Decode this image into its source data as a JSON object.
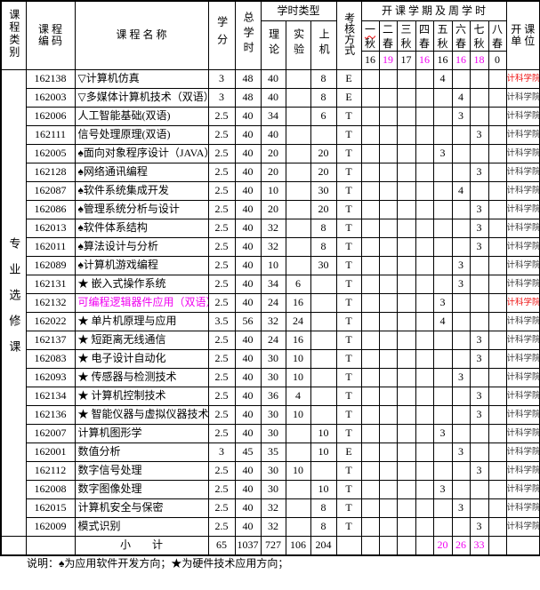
{
  "colors": {
    "magenta": "#f000f0",
    "red": "#ee1111",
    "border": "#000000",
    "unit_text": "#3d3d3d"
  },
  "header": {
    "col_category": "课程类别",
    "col_code_line1": "课 程",
    "col_code_line2": "编 码",
    "col_name": "课 程 名 称",
    "col_credit": "学分",
    "col_total": "总学时",
    "group_hour_types": "学时类型",
    "col_theory": "理论",
    "col_exp": "实验",
    "col_computer": "上机",
    "col_exam": "考核方式",
    "group_semesters": "开 课 学 期 及 周 学 时",
    "col_unit_line1": "开 课",
    "col_unit_line2": "单 位",
    "semesters": [
      {
        "term": "一",
        "season": "秋",
        "hours": "16",
        "magenta": false,
        "squiggle": true
      },
      {
        "term": "二",
        "season": "春",
        "hours": "19",
        "magenta": true,
        "squiggle": false
      },
      {
        "term": "三",
        "season": "秋",
        "hours": "17",
        "magenta": false,
        "squiggle": false
      },
      {
        "term": "四",
        "season": "春",
        "hours": "16",
        "magenta": true,
        "squiggle": false
      },
      {
        "term": "五",
        "season": "秋",
        "hours": "16",
        "magenta": false,
        "squiggle": false
      },
      {
        "term": "六",
        "season": "春",
        "hours": "16",
        "magenta": true,
        "squiggle": false
      },
      {
        "term": "七",
        "season": "秋",
        "hours": "18",
        "magenta": true,
        "squiggle": false
      },
      {
        "term": "八",
        "season": "春",
        "hours": "0",
        "magenta": false,
        "squiggle": false
      }
    ]
  },
  "category_label": "专业选修课",
  "rows": [
    {
      "code": "162138",
      "name": "▽计算机仿真",
      "credit": "3",
      "total": "48",
      "theory": "40",
      "exp": "",
      "comp": "8",
      "exam": "E",
      "sem": [
        "",
        "",
        "",
        "",
        "4",
        "",
        "",
        ""
      ],
      "unit": "计科学院",
      "unit_red": true,
      "name_magenta": false
    },
    {
      "code": "162003",
      "name": "▽多媒体计算机技术（双语）",
      "credit": "3",
      "total": "48",
      "theory": "40",
      "exp": "",
      "comp": "8",
      "exam": "E",
      "sem": [
        "",
        "",
        "",
        "",
        "",
        "4",
        "",
        ""
      ],
      "unit": "计科学院",
      "unit_red": false,
      "name_magenta": false
    },
    {
      "code": "162006",
      "name": "人工智能基础(双语)",
      "credit": "2.5",
      "total": "40",
      "theory": "34",
      "exp": "",
      "comp": "6",
      "exam": "T",
      "sem": [
        "",
        "",
        "",
        "",
        "",
        "3",
        "",
        ""
      ],
      "unit": "计科学院",
      "unit_red": false,
      "name_magenta": false
    },
    {
      "code": "162111",
      "name": "信号处理原理(双语)",
      "credit": "2.5",
      "total": "40",
      "theory": "40",
      "exp": "",
      "comp": "",
      "exam": "T",
      "sem": [
        "",
        "",
        "",
        "",
        "",
        "",
        "3",
        ""
      ],
      "unit": "计科学院",
      "unit_red": false,
      "name_magenta": false
    },
    {
      "code": "162005",
      "name": "♠面向对象程序设计（JAVA）",
      "credit": "2.5",
      "total": "40",
      "theory": "20",
      "exp": "",
      "comp": "20",
      "exam": "T",
      "sem": [
        "",
        "",
        "",
        "",
        "3",
        "",
        "",
        ""
      ],
      "unit": "计科学院",
      "unit_red": false,
      "name_magenta": false
    },
    {
      "code": "162128",
      "name": "♠网络通讯编程",
      "credit": "2.5",
      "total": "40",
      "theory": "20",
      "exp": "",
      "comp": "20",
      "exam": "T",
      "sem": [
        "",
        "",
        "",
        "",
        "",
        "",
        "3",
        ""
      ],
      "unit": "计科学院",
      "unit_red": false,
      "name_magenta": false
    },
    {
      "code": "162087",
      "name": "♠软件系统集成开发",
      "credit": "2.5",
      "total": "40",
      "theory": "10",
      "exp": "",
      "comp": "30",
      "exam": "T",
      "sem": [
        "",
        "",
        "",
        "",
        "",
        "4",
        "",
        ""
      ],
      "unit": "计科学院",
      "unit_red": false,
      "name_magenta": false
    },
    {
      "code": "162086",
      "name": "♠管理系统分析与设计",
      "credit": "2.5",
      "total": "40",
      "theory": "20",
      "exp": "",
      "comp": "20",
      "exam": "T",
      "sem": [
        "",
        "",
        "",
        "",
        "",
        "",
        "3",
        ""
      ],
      "unit": "计科学院",
      "unit_red": false,
      "name_magenta": false
    },
    {
      "code": "162013",
      "name": "♠软件体系结构",
      "credit": "2.5",
      "total": "40",
      "theory": "32",
      "exp": "",
      "comp": "8",
      "exam": "T",
      "sem": [
        "",
        "",
        "",
        "",
        "",
        "",
        "3",
        ""
      ],
      "unit": "计科学院",
      "unit_red": false,
      "name_magenta": false
    },
    {
      "code": "162011",
      "name": "♠算法设计与分析",
      "credit": "2.5",
      "total": "40",
      "theory": "32",
      "exp": "",
      "comp": "8",
      "exam": "T",
      "sem": [
        "",
        "",
        "",
        "",
        "",
        "",
        "3",
        ""
      ],
      "unit": "计科学院",
      "unit_red": false,
      "name_magenta": false
    },
    {
      "code": "162089",
      "name": "♠计算机游戏编程",
      "credit": "2.5",
      "total": "40",
      "theory": "10",
      "exp": "",
      "comp": "30",
      "exam": "T",
      "sem": [
        "",
        "",
        "",
        "",
        "",
        "3",
        "",
        ""
      ],
      "unit": "计科学院",
      "unit_red": false,
      "name_magenta": false
    },
    {
      "code": "162131",
      "name": "★ 嵌入式操作系统",
      "credit": "2.5",
      "total": "40",
      "theory": "34",
      "exp": "6",
      "comp": "",
      "exam": "T",
      "sem": [
        "",
        "",
        "",
        "",
        "",
        "3",
        "",
        ""
      ],
      "unit": "计科学院",
      "unit_red": false,
      "name_magenta": false
    },
    {
      "code": "162132",
      "name": "可编程逻辑器件应用（双语）",
      "credit": "2.5",
      "total": "40",
      "theory": "24",
      "exp": "16",
      "comp": "",
      "exam": "T",
      "sem": [
        "",
        "",
        "",
        "",
        "3",
        "",
        "",
        ""
      ],
      "unit": "计科学院",
      "unit_red": true,
      "name_magenta": true
    },
    {
      "code": "162022",
      "name": "★ 单片机原理与应用",
      "credit": "3.5",
      "total": "56",
      "theory": "32",
      "exp": "24",
      "comp": "",
      "exam": "T",
      "sem": [
        "",
        "",
        "",
        "",
        "4",
        "",
        "",
        ""
      ],
      "unit": "计科学院",
      "unit_red": false,
      "name_magenta": false
    },
    {
      "code": "162137",
      "name": "★ 短距离无线通信",
      "credit": "2.5",
      "total": "40",
      "theory": "24",
      "exp": "16",
      "comp": "",
      "exam": "T",
      "sem": [
        "",
        "",
        "",
        "",
        "",
        "",
        "3",
        ""
      ],
      "unit": "计科学院",
      "unit_red": false,
      "name_magenta": false
    },
    {
      "code": "162083",
      "name": "★ 电子设计自动化",
      "credit": "2.5",
      "total": "40",
      "theory": "30",
      "exp": "10",
      "comp": "",
      "exam": "T",
      "sem": [
        "",
        "",
        "",
        "",
        "",
        "",
        "3",
        ""
      ],
      "unit": "计科学院",
      "unit_red": false,
      "name_magenta": false
    },
    {
      "code": "162093",
      "name": "★ 传感器与检测技术",
      "credit": "2.5",
      "total": "40",
      "theory": "30",
      "exp": "10",
      "comp": "",
      "exam": "T",
      "sem": [
        "",
        "",
        "",
        "",
        "",
        "3",
        "",
        ""
      ],
      "unit": "计科学院",
      "unit_red": false,
      "name_magenta": false
    },
    {
      "code": "162134",
      "name": "★ 计算机控制技术",
      "credit": "2.5",
      "total": "40",
      "theory": "36",
      "exp": "4",
      "comp": "",
      "exam": "T",
      "sem": [
        "",
        "",
        "",
        "",
        "",
        "",
        "3",
        ""
      ],
      "unit": "计科学院",
      "unit_red": false,
      "name_magenta": false
    },
    {
      "code": "162136",
      "name": "★ 智能仪器与虚拟仪器技术",
      "credit": "2.5",
      "total": "40",
      "theory": "30",
      "exp": "10",
      "comp": "",
      "exam": "T",
      "sem": [
        "",
        "",
        "",
        "",
        "",
        "",
        "3",
        ""
      ],
      "unit": "计科学院",
      "unit_red": false,
      "name_magenta": false
    },
    {
      "code": "162007",
      "name": "计算机图形学",
      "credit": "2.5",
      "total": "40",
      "theory": "30",
      "exp": "",
      "comp": "10",
      "exam": "T",
      "sem": [
        "",
        "",
        "",
        "",
        "3",
        "",
        "",
        ""
      ],
      "unit": "计科学院",
      "unit_red": false,
      "name_magenta": false
    },
    {
      "code": "162001",
      "name": "数值分析",
      "credit": "3",
      "total": "45",
      "theory": "35",
      "exp": "",
      "comp": "10",
      "exam": "E",
      "sem": [
        "",
        "",
        "",
        "",
        "",
        "3",
        "",
        ""
      ],
      "unit": "计科学院",
      "unit_red": false,
      "name_magenta": false
    },
    {
      "code": "162112",
      "name": "数字信号处理",
      "credit": "2.5",
      "total": "40",
      "theory": "30",
      "exp": "10",
      "comp": "",
      "exam": "T",
      "sem": [
        "",
        "",
        "",
        "",
        "",
        "",
        "3",
        ""
      ],
      "unit": "计科学院",
      "unit_red": false,
      "name_magenta": false
    },
    {
      "code": "162008",
      "name": "数字图像处理",
      "credit": "2.5",
      "total": "40",
      "theory": "30",
      "exp": "",
      "comp": "10",
      "exam": "T",
      "sem": [
        "",
        "",
        "",
        "",
        "3",
        "",
        "",
        ""
      ],
      "unit": "计科学院",
      "unit_red": false,
      "name_magenta": false
    },
    {
      "code": "162015",
      "name": "计算机安全与保密",
      "credit": "2.5",
      "total": "40",
      "theory": "32",
      "exp": "",
      "comp": "8",
      "exam": "T",
      "sem": [
        "",
        "",
        "",
        "",
        "",
        "3",
        "",
        ""
      ],
      "unit": "计科学院",
      "unit_red": false,
      "name_magenta": false
    },
    {
      "code": "162009",
      "name": "模式识别",
      "credit": "2.5",
      "total": "40",
      "theory": "32",
      "exp": "",
      "comp": "8",
      "exam": "T",
      "sem": [
        "",
        "",
        "",
        "",
        "",
        "",
        "3",
        ""
      ],
      "unit": "计科学院",
      "unit_red": false,
      "name_magenta": false
    }
  ],
  "subtotal": {
    "label": "小　　计",
    "credit": "65",
    "total": "1037",
    "theory": "727",
    "exp": "106",
    "comp": "204",
    "exam": "",
    "sem": [
      "",
      "",
      "",
      "",
      "20",
      "26",
      "33",
      ""
    ],
    "sem_magenta": true,
    "unit": ""
  },
  "footnote": "说明：♠为应用软件开发方向；★为硬件技术应用方向；"
}
